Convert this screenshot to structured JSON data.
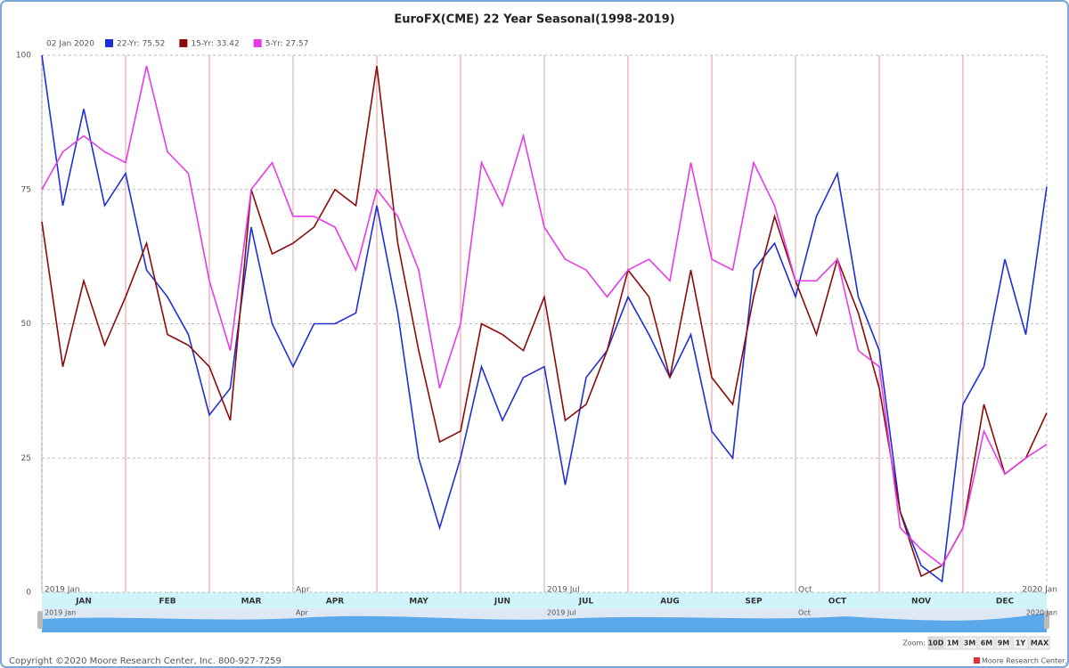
{
  "chart_data": {
    "type": "line",
    "title": "EuroFX(CME) 22 Year Seasonal(1998-2019)",
    "legend_date": "02 Jan 2020",
    "months": [
      "JAN",
      "FEB",
      "MAR",
      "APR",
      "MAY",
      "JUN",
      "JUL",
      "AUG",
      "SEP",
      "OCT",
      "NOV",
      "DEC"
    ],
    "x": [
      0,
      0.25,
      0.5,
      0.75,
      1,
      1.25,
      1.5,
      1.75,
      2,
      2.25,
      2.5,
      2.75,
      3,
      3.25,
      3.5,
      3.75,
      4,
      4.25,
      4.5,
      4.75,
      5,
      5.25,
      5.5,
      5.75,
      6,
      6.25,
      6.5,
      6.75,
      7,
      7.25,
      7.5,
      7.75,
      8,
      8.25,
      8.5,
      8.75,
      9,
      9.25,
      9.5,
      9.75,
      10,
      10.25,
      10.5,
      10.75,
      11,
      11.25,
      11.5,
      11.75,
      12
    ],
    "xlim": [
      0,
      12
    ],
    "xticks": [
      {
        "value": 0,
        "label": "2019 Jan"
      },
      {
        "value": 3,
        "label": "Apr"
      },
      {
        "value": 6,
        "label": "2019 Jul"
      },
      {
        "value": 9,
        "label": "Oct"
      },
      {
        "value": 12,
        "label": "2020 Jan"
      }
    ],
    "ylim": [
      0,
      100
    ],
    "yticks": [
      0,
      25,
      50,
      75,
      100
    ],
    "grid": true,
    "series": [
      {
        "name": "22-Yr: 75.52",
        "color": "#1f2fd6",
        "values": [
          100,
          72,
          90,
          72,
          78,
          60,
          55,
          48,
          33,
          38,
          68,
          50,
          42,
          50,
          50,
          52,
          72,
          52,
          25,
          12,
          25,
          42,
          32,
          40,
          42,
          20,
          40,
          45,
          55,
          48,
          40,
          48,
          30,
          25,
          60,
          65,
          55,
          70,
          78,
          55,
          45,
          15,
          5,
          2,
          35,
          42,
          62,
          48,
          75.52
        ]
      },
      {
        "name": "15-Yr: 33.42",
        "color": "#8b0a0a",
        "values": [
          69,
          42,
          58,
          46,
          55,
          65,
          48,
          46,
          42,
          32,
          75,
          63,
          65,
          68,
          75,
          72,
          98,
          65,
          45,
          28,
          30,
          50,
          48,
          45,
          55,
          32,
          35,
          45,
          60,
          55,
          40,
          60,
          40,
          35,
          55,
          70,
          58,
          48,
          62,
          52,
          38,
          15,
          3,
          5,
          12,
          35,
          22,
          25,
          33.42
        ]
      },
      {
        "name": "5-Yr: 27.57",
        "color": "#e63ce6",
        "values": [
          75,
          82,
          85,
          82,
          80,
          98,
          82,
          78,
          58,
          45,
          75,
          80,
          70,
          70,
          68,
          60,
          75,
          70,
          60,
          38,
          50,
          80,
          72,
          85,
          68,
          62,
          60,
          55,
          60,
          62,
          58,
          80,
          62,
          60,
          80,
          72,
          58,
          58,
          62,
          45,
          42,
          12,
          8,
          5,
          12,
          30,
          22,
          25,
          27.57
        ]
      }
    ],
    "zoom": {
      "label": "Zoom:",
      "buttons": [
        "10D",
        "1M",
        "3M",
        "6M",
        "9M",
        "1Y",
        "MAX"
      ]
    },
    "copyright": "Copyright ©2020 Moore Research Center, Inc. 800-927-7259",
    "credit": "Moore Research Center, Inc."
  }
}
